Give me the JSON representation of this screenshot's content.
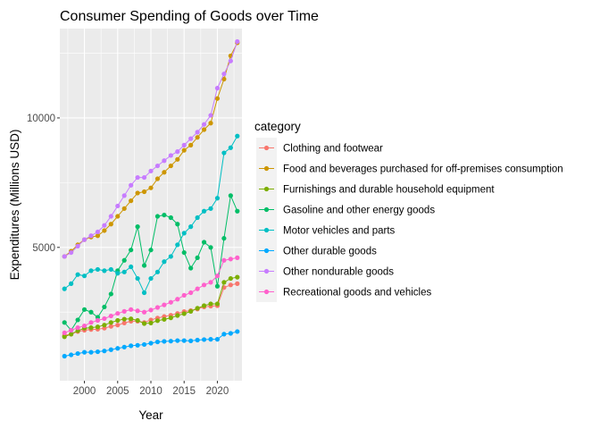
{
  "chart_data": {
    "type": "line",
    "title": "Consumer Spending of Goods over Time",
    "xlabel": "Year",
    "ylabel": "Expenditures (Millions USD)",
    "xlim": [
      1996.3,
      2023.7
    ],
    "ylim": [
      -150,
      13450
    ],
    "xticks": [
      2000,
      2005,
      2010,
      2015,
      2020
    ],
    "yticks": [
      5000,
      10000
    ],
    "tick_labels_x": [
      "2000",
      "2005",
      "2010",
      "2015",
      "2020"
    ],
    "tick_labels_y": [
      "5000",
      "10000"
    ],
    "grid": true,
    "legend_position": "right",
    "legend_title": "category",
    "x": [
      1997,
      1998,
      1999,
      2000,
      2001,
      2002,
      2003,
      2004,
      2005,
      2006,
      2007,
      2008,
      2009,
      2010,
      2011,
      2012,
      2013,
      2014,
      2015,
      2016,
      2017,
      2018,
      2019,
      2020,
      2021,
      2022,
      2023
    ],
    "series": [
      {
        "name": "Clothing and footwear",
        "color": "#F8766D",
        "values": [
          1600,
          1650,
          1750,
          1800,
          1830,
          1840,
          1880,
          1950,
          2000,
          2080,
          2150,
          2150,
          2100,
          2200,
          2270,
          2330,
          2380,
          2450,
          2520,
          2560,
          2620,
          2700,
          2730,
          2750,
          3450,
          3550,
          3600
        ]
      },
      {
        "name": "Food and beverages purchased for off-premises consumption",
        "color": "#CD9600",
        "values": [
          4650,
          4850,
          5100,
          5300,
          5400,
          5450,
          5650,
          5900,
          6200,
          6500,
          6800,
          7100,
          7150,
          7300,
          7650,
          7900,
          8150,
          8400,
          8750,
          8950,
          9250,
          9550,
          9800,
          10750,
          11500,
          12400,
          12900
        ]
      },
      {
        "name": "Furnishings and durable household equipment",
        "color": "#7CAE00",
        "values": [
          1550,
          1650,
          1780,
          1880,
          1900,
          1930,
          2000,
          2100,
          2180,
          2230,
          2240,
          2180,
          2060,
          2080,
          2170,
          2220,
          2280,
          2370,
          2440,
          2530,
          2650,
          2750,
          2820,
          2820,
          3650,
          3800,
          3850
        ]
      },
      {
        "name": "Gasoline and other energy goods",
        "color": "#00BE67",
        "values": [
          2100,
          1800,
          2200,
          2600,
          2500,
          2300,
          2700,
          3200,
          4100,
          4500,
          4900,
          5800,
          4300,
          4900,
          6200,
          6250,
          6150,
          5900,
          4800,
          4200,
          4600,
          5200,
          5000,
          3500,
          5350,
          7000,
          6400
        ]
      },
      {
        "name": "Motor vehicles and parts",
        "color": "#00BFC4",
        "values": [
          3400,
          3600,
          3950,
          3900,
          4100,
          4150,
          4100,
          4150,
          4000,
          4050,
          4250,
          3800,
          3250,
          3800,
          4050,
          4450,
          4650,
          5100,
          5550,
          5800,
          6150,
          6400,
          6500,
          6900,
          8650,
          8850,
          9300
        ]
      },
      {
        "name": "Other durable goods",
        "color": "#00A9FF",
        "values": [
          800,
          850,
          900,
          950,
          950,
          970,
          1000,
          1050,
          1100,
          1150,
          1200,
          1220,
          1250,
          1300,
          1350,
          1370,
          1380,
          1400,
          1400,
          1390,
          1420,
          1440,
          1450,
          1450,
          1650,
          1680,
          1750
        ]
      },
      {
        "name": "Other nondurable goods",
        "color": "#C77CFF",
        "values": [
          4650,
          4800,
          5050,
          5300,
          5450,
          5600,
          5850,
          6200,
          6600,
          7000,
          7400,
          7700,
          7700,
          7950,
          8150,
          8350,
          8550,
          8700,
          8950,
          9200,
          9450,
          9750,
          10100,
          11150,
          11700,
          12200,
          12950
        ]
      },
      {
        "name": "Recreational goods and vehicles",
        "color": "#FF61CC",
        "values": [
          1700,
          1800,
          1900,
          1970,
          2100,
          2180,
          2250,
          2350,
          2450,
          2530,
          2600,
          2550,
          2500,
          2580,
          2680,
          2780,
          2880,
          3000,
          3150,
          3250,
          3400,
          3550,
          3650,
          3900,
          4500,
          4550,
          4600
        ]
      }
    ]
  }
}
